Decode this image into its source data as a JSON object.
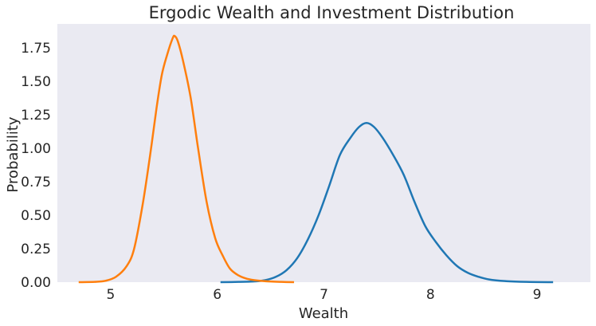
{
  "chart_data": {
    "type": "line",
    "title": "Ergodic Wealth and Investment Distribution",
    "xlabel": "Wealth",
    "ylabel": "Probability",
    "xlim": [
      4.5,
      9.5
    ],
    "ylim": [
      0,
      1.93
    ],
    "xticks": [
      5,
      6,
      7,
      8,
      9
    ],
    "yticks": [
      0.0,
      0.25,
      0.5,
      0.75,
      1.0,
      1.25,
      1.5,
      1.75
    ],
    "ytick_labels": [
      "0.00",
      "0.25",
      "0.50",
      "0.75",
      "1.00",
      "1.25",
      "1.50",
      "1.75"
    ],
    "grid": false,
    "background": "#eaeaf2",
    "series": [
      {
        "color": "#1f77b4",
        "points": [
          [
            6.03,
            0.0
          ],
          [
            6.2,
            0.002
          ],
          [
            6.35,
            0.006
          ],
          [
            6.45,
            0.015
          ],
          [
            6.55,
            0.04
          ],
          [
            6.65,
            0.09
          ],
          [
            6.75,
            0.18
          ],
          [
            6.85,
            0.32
          ],
          [
            6.95,
            0.5
          ],
          [
            7.05,
            0.72
          ],
          [
            7.15,
            0.95
          ],
          [
            7.25,
            1.08
          ],
          [
            7.33,
            1.16
          ],
          [
            7.4,
            1.19
          ],
          [
            7.47,
            1.16
          ],
          [
            7.55,
            1.08
          ],
          [
            7.65,
            0.95
          ],
          [
            7.75,
            0.8
          ],
          [
            7.85,
            0.6
          ],
          [
            7.95,
            0.42
          ],
          [
            8.05,
            0.3
          ],
          [
            8.15,
            0.2
          ],
          [
            8.25,
            0.12
          ],
          [
            8.35,
            0.07
          ],
          [
            8.45,
            0.04
          ],
          [
            8.55,
            0.02
          ],
          [
            8.7,
            0.008
          ],
          [
            8.9,
            0.002
          ],
          [
            9.15,
            0.0
          ]
        ]
      },
      {
        "color": "#ff7f0e",
        "points": [
          [
            4.7,
            0.0
          ],
          [
            4.85,
            0.002
          ],
          [
            4.95,
            0.01
          ],
          [
            5.05,
            0.04
          ],
          [
            5.15,
            0.12
          ],
          [
            5.22,
            0.25
          ],
          [
            5.3,
            0.58
          ],
          [
            5.37,
            0.95
          ],
          [
            5.43,
            1.3
          ],
          [
            5.48,
            1.55
          ],
          [
            5.53,
            1.7
          ],
          [
            5.58,
            1.82
          ],
          [
            5.6,
            1.84
          ],
          [
            5.63,
            1.8
          ],
          [
            5.68,
            1.65
          ],
          [
            5.75,
            1.38
          ],
          [
            5.82,
            1.0
          ],
          [
            5.9,
            0.6
          ],
          [
            5.98,
            0.33
          ],
          [
            6.05,
            0.2
          ],
          [
            6.12,
            0.1
          ],
          [
            6.2,
            0.05
          ],
          [
            6.28,
            0.025
          ],
          [
            6.38,
            0.012
          ],
          [
            6.5,
            0.005
          ],
          [
            6.6,
            0.002
          ],
          [
            6.72,
            0.0
          ]
        ]
      }
    ]
  }
}
